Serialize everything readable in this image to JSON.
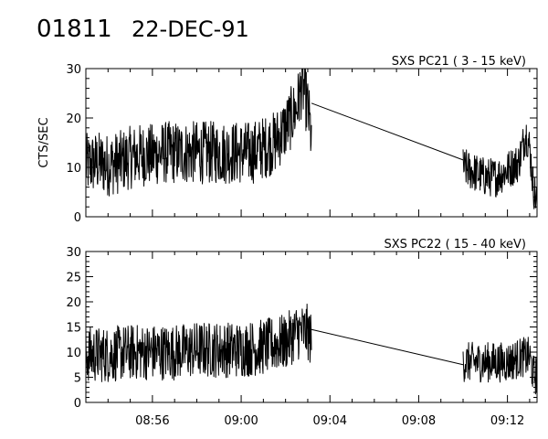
{
  "header": {
    "event_id": "01811",
    "date": "22-DEC-91"
  },
  "chart_data": [
    {
      "type": "line",
      "title": "SXS PC21  (  3 - 15 keV)",
      "ylabel": "CTS/SEC",
      "xlabel": "",
      "ylim": [
        0,
        30
      ],
      "yticks": [
        0,
        10,
        20,
        30
      ],
      "xlim": [
        "08:53:00",
        "09:13:20"
      ],
      "xticks": [
        "08:56",
        "09:00",
        "09:04",
        "09:08",
        "09:12"
      ],
      "grid": false,
      "series": [
        {
          "values_note": "",
          "segments": [
            {
              "x_start": "08:53:00",
              "x_end": "09:03:10",
              "noisy": true,
              "points": [
                [
                  0,
                  10.5
                ],
                [
                  30,
                  11
                ],
                [
                  60,
                  10.5
                ],
                [
                  90,
                  11
                ],
                [
                  120,
                  12
                ],
                [
                  150,
                  12.5
                ],
                [
                  180,
                  12.5
                ],
                [
                  210,
                  13
                ],
                [
                  240,
                  13
                ],
                [
                  270,
                  13
                ],
                [
                  300,
                  13
                ],
                [
                  330,
                  13
                ],
                [
                  360,
                  13
                ],
                [
                  390,
                  13
                ],
                [
                  420,
                  13
                ],
                [
                  450,
                  13
                ],
                [
                  480,
                  14
                ],
                [
                  510,
                  15
                ],
                [
                  540,
                  18
                ],
                [
                  570,
                  22
                ],
                [
                  585,
                  27
                ],
                [
                  600,
                  22
                ],
                [
                  610,
                  16
                ]
              ],
              "spread": 4
            },
            {
              "x_start": "09:03:10",
              "x_end": "09:10:00",
              "noisy": false,
              "points": [
                [
                  0,
                  23
                ],
                [
                  410,
                  11.5
                ]
              ],
              "spread": 0
            },
            {
              "x_start": "09:10:00",
              "x_end": "09:13:20",
              "noisy": true,
              "points": [
                [
                  0,
                  10
                ],
                [
                  30,
                  9
                ],
                [
                  60,
                  8
                ],
                [
                  90,
                  8
                ],
                [
                  120,
                  9.5
                ],
                [
                  150,
                  11
                ],
                [
                  160,
                  14
                ],
                [
                  170,
                  17
                ],
                [
                  180,
                  14
                ],
                [
                  190,
                  6
                ],
                [
                  200,
                  3
                ]
              ],
              "spread": 2.5
            }
          ]
        }
      ]
    },
    {
      "type": "line",
      "title": "SXS PC22  ( 15 - 40 keV)",
      "ylabel": "",
      "xlabel": "",
      "ylim": [
        0,
        30
      ],
      "yticks": [
        0,
        5,
        10,
        15,
        20,
        25,
        30
      ],
      "xlim": [
        "08:53:00",
        "09:13:20"
      ],
      "xticks": [
        "08:56",
        "09:00",
        "09:04",
        "09:08",
        "09:12"
      ],
      "grid": false,
      "series": [
        {
          "segments": [
            {
              "x_start": "08:53:00",
              "x_end": "09:03:10",
              "noisy": true,
              "points": [
                [
                  0,
                  9.5
                ],
                [
                  60,
                  9.5
                ],
                [
                  120,
                  10
                ],
                [
                  180,
                  10
                ],
                [
                  240,
                  10
                ],
                [
                  300,
                  10.5
                ],
                [
                  360,
                  10.5
                ],
                [
                  420,
                  10.5
                ],
                [
                  480,
                  11
                ],
                [
                  540,
                  12
                ],
                [
                  570,
                  14
                ],
                [
                  600,
                  14
                ],
                [
                  610,
                  12
                ]
              ],
              "spread": 3.5
            },
            {
              "x_start": "09:03:10",
              "x_end": "09:10:00",
              "noisy": false,
              "points": [
                [
                  0,
                  14.5
                ],
                [
                  410,
                  7.5
                ]
              ],
              "spread": 0
            },
            {
              "x_start": "09:10:00",
              "x_end": "09:13:20",
              "noisy": true,
              "points": [
                [
                  0,
                  8
                ],
                [
                  60,
                  8
                ],
                [
                  120,
                  8
                ],
                [
                  160,
                  9
                ],
                [
                  180,
                  9
                ],
                [
                  190,
                  5.5
                ],
                [
                  200,
                  5.5
                ]
              ],
              "spread": 2.5
            }
          ]
        }
      ]
    }
  ]
}
